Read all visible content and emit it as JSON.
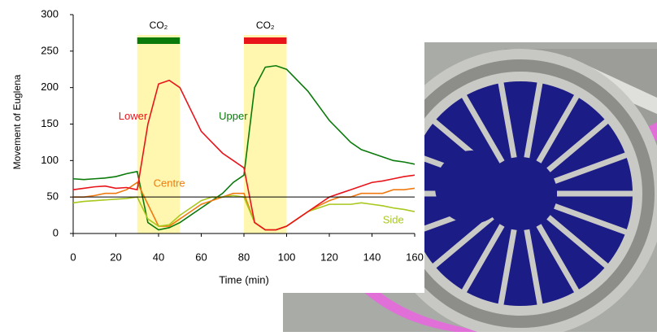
{
  "chart_data": {
    "type": "line",
    "y_label": "Movement of Euglena",
    "x_label": "Time (min)",
    "x": [
      0,
      5,
      10,
      15,
      20,
      25,
      30,
      35,
      40,
      45,
      50,
      55,
      60,
      65,
      70,
      75,
      80,
      85,
      90,
      95,
      100,
      105,
      110,
      115,
      120,
      125,
      130,
      135,
      140,
      145,
      150,
      155,
      160
    ],
    "series": [
      {
        "name": "Lower",
        "color": "#e8141a",
        "values": [
          60,
          62,
          64,
          65,
          62,
          63,
          60,
          150,
          205,
          210,
          200,
          170,
          140,
          125,
          110,
          100,
          90,
          15,
          5,
          5,
          10,
          20,
          30,
          40,
          50,
          55,
          60,
          65,
          70,
          72,
          75,
          78,
          80
        ]
      },
      {
        "name": "Upper",
        "color": "#0a7a0a",
        "values": [
          75,
          74,
          75,
          76,
          78,
          82,
          85,
          15,
          5,
          8,
          15,
          25,
          35,
          45,
          55,
          70,
          80,
          200,
          228,
          230,
          225,
          210,
          195,
          175,
          155,
          140,
          125,
          115,
          110,
          105,
          100,
          98,
          95
        ]
      },
      {
        "name": "Centre",
        "color": "#f07a10",
        "values": [
          50,
          50,
          52,
          55,
          55,
          60,
          70,
          40,
          10,
          10,
          20,
          30,
          40,
          45,
          50,
          55,
          55,
          15,
          5,
          5,
          10,
          20,
          30,
          38,
          45,
          50,
          50,
          55,
          55,
          55,
          60,
          60,
          62
        ]
      },
      {
        "name": "Side",
        "color": "#a8c81e",
        "values": [
          42,
          44,
          45,
          46,
          47,
          48,
          50,
          20,
          10,
          12,
          25,
          35,
          45,
          50,
          50,
          52,
          50,
          15,
          5,
          5,
          10,
          20,
          30,
          35,
          40,
          40,
          40,
          42,
          40,
          38,
          35,
          33,
          30
        ]
      }
    ],
    "co2_periods": [
      {
        "label": "CO₂",
        "start": 30,
        "end": 50,
        "bar_color": "#0a7a0a"
      },
      {
        "label": "CO₂",
        "start": 80,
        "end": 100,
        "bar_color": "#e8141a"
      }
    ],
    "reference_line": 50,
    "xlim": [
      0,
      160
    ],
    "xticks": [
      0,
      20,
      40,
      60,
      80,
      100,
      120,
      140,
      160
    ],
    "ylim": [
      0,
      300
    ],
    "yticks": [
      0,
      50,
      100,
      150,
      200,
      250,
      300
    ]
  }
}
